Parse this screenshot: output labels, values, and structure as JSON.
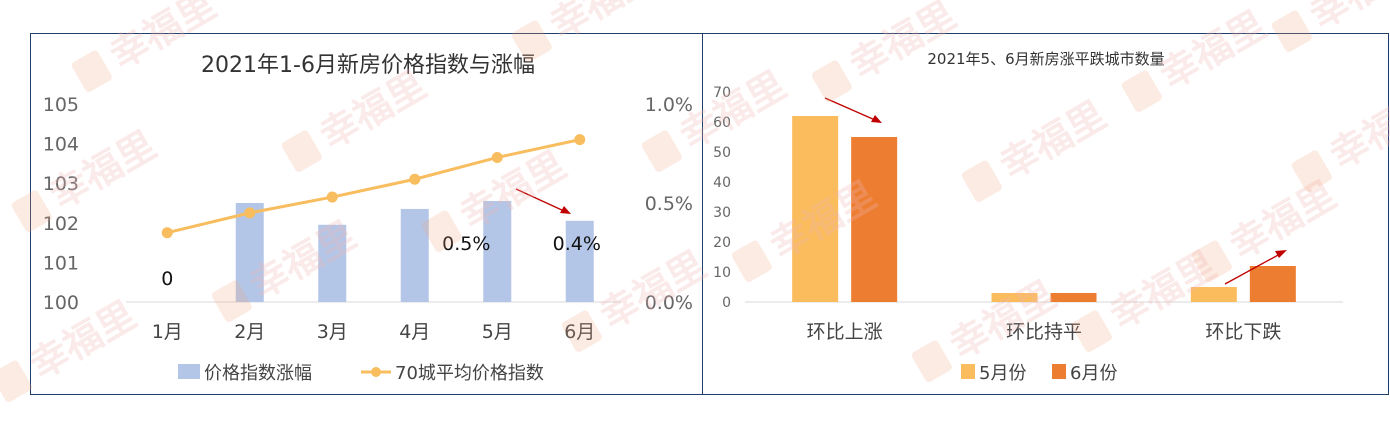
{
  "chart_data": [
    {
      "type": "bar+line",
      "title": "2021年1-6月新房价格指数与涨幅",
      "categories": [
        "1月",
        "2月",
        "3月",
        "4月",
        "5月",
        "6月"
      ],
      "y_left": {
        "ticks": [
          "100",
          "101",
          "102",
          "103",
          "104",
          "105"
        ],
        "range": [
          100,
          105
        ]
      },
      "y_right": {
        "ticks": [
          "0.0%",
          "0.5%",
          "1.0%"
        ],
        "range": [
          0,
          1.0
        ]
      },
      "series": [
        {
          "name": "价格指数涨幅",
          "kind": "bar",
          "axis": "right",
          "color": "#b4c6e7",
          "values": [
            0,
            0.5,
            0.39,
            0.47,
            0.51,
            0.41
          ]
        },
        {
          "name": "70城平均价格指数",
          "kind": "line",
          "axis": "left",
          "color": "#f8bd5e",
          "values": [
            101.75,
            102.25,
            102.65,
            103.1,
            103.65,
            104.1
          ]
        }
      ],
      "data_labels": [
        {
          "category": "1月",
          "text": "0"
        },
        {
          "category": "5月",
          "text": "0.5%"
        },
        {
          "category": "6月",
          "text": "0.4%"
        }
      ],
      "legend": "bottom"
    },
    {
      "type": "bar",
      "title": "2021年5、6月新房涨平跌城市数量",
      "categories": [
        "环比上涨",
        "环比持平",
        "环比下跌"
      ],
      "y_ticks": [
        "0",
        "10",
        "20",
        "30",
        "40",
        "50",
        "60",
        "70"
      ],
      "ylim": [
        0,
        70
      ],
      "series": [
        {
          "name": "5月份",
          "color": "#fbbc5d",
          "values": [
            62,
            3,
            5
          ]
        },
        {
          "name": "6月份",
          "color": "#ed7d31",
          "values": [
            55,
            3,
            12
          ]
        }
      ],
      "legend": "bottom"
    }
  ],
  "watermark": "幸福里"
}
